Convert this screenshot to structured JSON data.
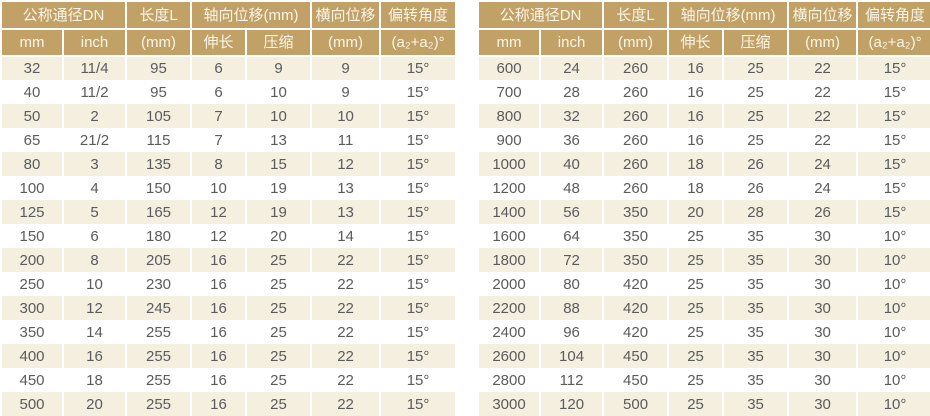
{
  "header": {
    "dn": "公称通径DN",
    "mm": "mm",
    "inch": "inch",
    "length_l": "长度L",
    "length_unit": "(mm)",
    "axial": "轴向位移(mm)",
    "extension": "伸长",
    "compression": "压缩",
    "lateral": "横向位移",
    "lateral_unit": "(mm)",
    "angle": "偏转角度",
    "angle_unit": "(a₂+a₂)°"
  },
  "colors": {
    "header_bg": "#c2a167",
    "header_text": "#faf5e8",
    "row_alt_bg": "#f4efde",
    "row_bg": "#ffffff",
    "cell_text": "#5b5b5d",
    "divider": "#ffffff"
  },
  "tables": [
    {
      "name": "dn-32-500",
      "rows": [
        [
          "32",
          "11/4",
          "95",
          "6",
          "9",
          "9",
          "15°"
        ],
        [
          "40",
          "11/2",
          "95",
          "6",
          "10",
          "9",
          "15°"
        ],
        [
          "50",
          "2",
          "105",
          "7",
          "10",
          "10",
          "15°"
        ],
        [
          "65",
          "21/2",
          "115",
          "7",
          "13",
          "11",
          "15°"
        ],
        [
          "80",
          "3",
          "135",
          "8",
          "15",
          "12",
          "15°"
        ],
        [
          "100",
          "4",
          "150",
          "10",
          "19",
          "13",
          "15°"
        ],
        [
          "125",
          "5",
          "165",
          "12",
          "19",
          "13",
          "15°"
        ],
        [
          "150",
          "6",
          "180",
          "12",
          "20",
          "14",
          "15°"
        ],
        [
          "200",
          "8",
          "205",
          "16",
          "25",
          "22",
          "15°"
        ],
        [
          "250",
          "10",
          "230",
          "16",
          "25",
          "22",
          "15°"
        ],
        [
          "300",
          "12",
          "245",
          "16",
          "25",
          "22",
          "15°"
        ],
        [
          "350",
          "14",
          "255",
          "16",
          "25",
          "22",
          "15°"
        ],
        [
          "400",
          "16",
          "255",
          "16",
          "25",
          "22",
          "15°"
        ],
        [
          "450",
          "18",
          "255",
          "16",
          "25",
          "22",
          "15°"
        ],
        [
          "500",
          "20",
          "255",
          "16",
          "25",
          "22",
          "15°"
        ]
      ]
    },
    {
      "name": "dn-600-3000",
      "rows": [
        [
          "600",
          "24",
          "260",
          "16",
          "25",
          "22",
          "15°"
        ],
        [
          "700",
          "28",
          "260",
          "16",
          "25",
          "22",
          "15°"
        ],
        [
          "800",
          "32",
          "260",
          "16",
          "25",
          "22",
          "15°"
        ],
        [
          "900",
          "36",
          "260",
          "16",
          "25",
          "22",
          "15°"
        ],
        [
          "1000",
          "40",
          "260",
          "18",
          "26",
          "24",
          "15°"
        ],
        [
          "1200",
          "48",
          "260",
          "18",
          "26",
          "24",
          "15°"
        ],
        [
          "1400",
          "56",
          "350",
          "20",
          "28",
          "26",
          "15°"
        ],
        [
          "1600",
          "64",
          "350",
          "25",
          "35",
          "30",
          "10°"
        ],
        [
          "1800",
          "72",
          "350",
          "25",
          "35",
          "30",
          "10°"
        ],
        [
          "2000",
          "80",
          "420",
          "25",
          "35",
          "30",
          "10°"
        ],
        [
          "2200",
          "88",
          "420",
          "25",
          "35",
          "30",
          "10°"
        ],
        [
          "2400",
          "96",
          "420",
          "25",
          "35",
          "30",
          "10°"
        ],
        [
          "2600",
          "104",
          "450",
          "25",
          "35",
          "30",
          "10°"
        ],
        [
          "2800",
          "112",
          "450",
          "25",
          "35",
          "30",
          "10°"
        ],
        [
          "3000",
          "120",
          "500",
          "25",
          "35",
          "30",
          "10°"
        ]
      ]
    }
  ]
}
